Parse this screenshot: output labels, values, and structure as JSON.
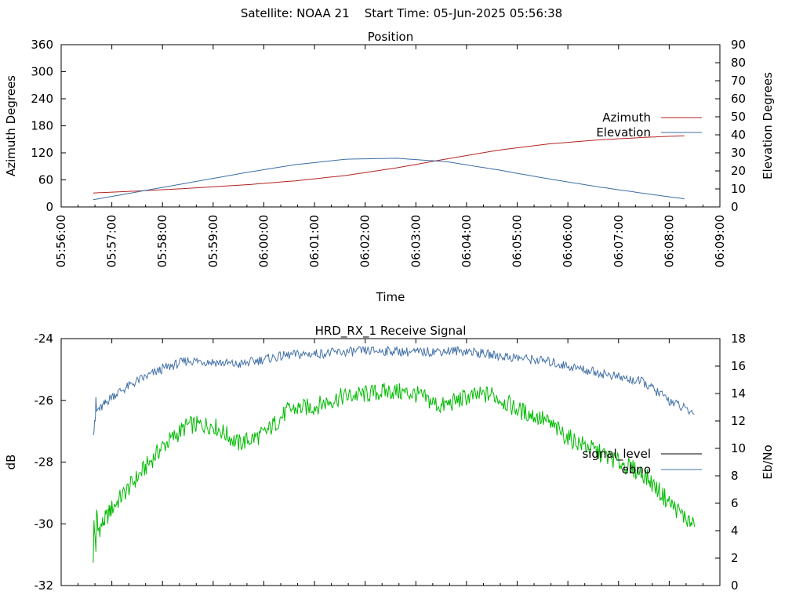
{
  "page": {
    "title": "Satellite: NOAA 21    Start Time: 05-Jun-2025 05:56:38"
  },
  "chart_data": [
    {
      "type": "line",
      "title": "Position",
      "xlabel": "Time",
      "ylabel": "Azimuth Degrees",
      "y2label": "Elevation Degrees",
      "x_ticks": [
        "05:56:00",
        "05:57:00",
        "05:58:00",
        "05:59:00",
        "06:00:00",
        "06:01:00",
        "06:02:00",
        "06:03:00",
        "06:04:00",
        "06:05:00",
        "06:06:00",
        "06:07:00",
        "06:08:00",
        "06:09:00"
      ],
      "xlim": [
        "05:56:00",
        "06:09:00"
      ],
      "ylim": [
        0,
        360
      ],
      "y_ticks": [
        0,
        60,
        120,
        180,
        240,
        300,
        360
      ],
      "y2lim": [
        0,
        90
      ],
      "y2_ticks": [
        0,
        10,
        20,
        30,
        40,
        50,
        60,
        70,
        80,
        90
      ],
      "legend_position": "right",
      "series": [
        {
          "name": "Azimuth",
          "axis": "left",
          "color": "#b22222",
          "x": [
            "05:56:38",
            "05:57:38",
            "05:58:38",
            "05:59:38",
            "06:00:38",
            "06:01:38",
            "06:02:38",
            "06:03:38",
            "06:04:38",
            "06:05:38",
            "06:06:38",
            "06:07:38",
            "06:08:18"
          ],
          "y": [
            31,
            36,
            42,
            49,
            58,
            70,
            87,
            107,
            126,
            140,
            149,
            155,
            158
          ]
        },
        {
          "name": "Elevation",
          "axis": "right",
          "color": "#3a6ea5",
          "x": [
            "05:56:38",
            "05:57:38",
            "05:58:38",
            "05:59:38",
            "06:00:38",
            "06:01:38",
            "06:02:38",
            "06:03:38",
            "06:04:38",
            "06:05:38",
            "06:06:38",
            "06:07:38",
            "06:08:18"
          ],
          "y": [
            4,
            9,
            14,
            19,
            23.5,
            26.5,
            27,
            25,
            20.5,
            15.5,
            11,
            7,
            4.5
          ]
        }
      ]
    },
    {
      "type": "line",
      "title": "HRD_RX_1 Receive Signal",
      "xlabel": "",
      "ylabel": "dB",
      "y2label": "Eb/No",
      "xlim": [
        "05:56:00",
        "06:09:00"
      ],
      "ylim": [
        -32,
        -24
      ],
      "y_ticks": [
        -32,
        -30,
        -28,
        -26,
        -24
      ],
      "y2lim": [
        0,
        18
      ],
      "y2_ticks": [
        0,
        2,
        4,
        6,
        8,
        10,
        12,
        14,
        16,
        18
      ],
      "legend_position": "right",
      "series": [
        {
          "name": "signal_level",
          "axis": "left",
          "color": "#00bb00",
          "x": [
            "05:56:38",
            "05:57:00",
            "05:57:30",
            "05:58:00",
            "05:58:30",
            "05:59:00",
            "05:59:30",
            "06:00:00",
            "06:00:30",
            "06:01:00",
            "06:01:30",
            "06:02:00",
            "06:02:30",
            "06:03:00",
            "06:03:30",
            "06:04:00",
            "06:04:30",
            "06:05:00",
            "06:05:30",
            "06:06:00",
            "06:06:30",
            "06:07:00",
            "06:07:30",
            "06:08:00",
            "06:08:30"
          ],
          "y": [
            -30.5,
            -29.5,
            -28.5,
            -27.5,
            -26.8,
            -26.8,
            -27.4,
            -27.1,
            -26.3,
            -26.2,
            -25.9,
            -25.8,
            -25.7,
            -25.8,
            -26.2,
            -25.9,
            -25.8,
            -26.3,
            -26.6,
            -27.2,
            -27.6,
            -28.0,
            -28.4,
            -29.3,
            -30.1
          ]
        },
        {
          "name": "ebno",
          "axis": "right",
          "color": "#4472a8",
          "x": [
            "05:56:38",
            "05:57:00",
            "05:57:30",
            "05:58:00",
            "05:58:30",
            "05:59:00",
            "05:59:30",
            "06:00:00",
            "06:00:30",
            "06:01:00",
            "06:01:30",
            "06:02:00",
            "06:02:30",
            "06:03:00",
            "06:03:30",
            "06:04:00",
            "06:04:30",
            "06:05:00",
            "06:05:30",
            "06:06:00",
            "06:06:30",
            "06:07:00",
            "06:07:30",
            "06:08:00",
            "06:08:30"
          ],
          "y": [
            12.3,
            13.8,
            14.9,
            15.8,
            16.4,
            16.3,
            16.1,
            16.5,
            16.8,
            16.9,
            17.0,
            17.1,
            17.1,
            17.0,
            17.1,
            17.1,
            16.8,
            16.6,
            16.4,
            16.0,
            15.6,
            15.2,
            14.8,
            13.5,
            12.5
          ]
        }
      ]
    }
  ]
}
